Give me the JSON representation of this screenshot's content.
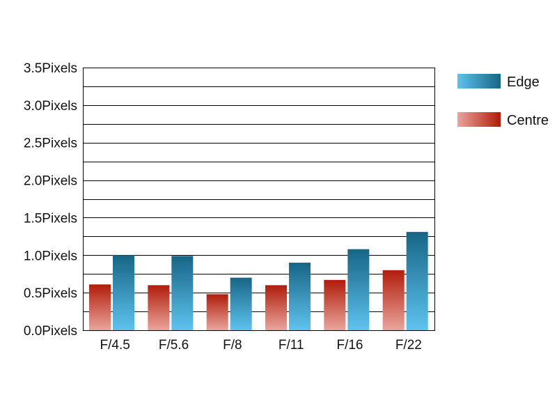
{
  "chart_data": {
    "type": "bar",
    "title": "",
    "xlabel": "",
    "ylabel": "",
    "categories": [
      "F/4.5",
      "F/5.6",
      "F/8",
      "F/11",
      "F/16",
      "F/22"
    ],
    "series": [
      {
        "name": "Centre",
        "values": [
          0.61,
          0.6,
          0.48,
          0.6,
          0.67,
          0.8
        ]
      },
      {
        "name": "Edge",
        "values": [
          1.0,
          0.99,
          0.7,
          0.9,
          1.08,
          1.31
        ]
      }
    ],
    "ylim": [
      0,
      3.5
    ],
    "y_ticks": [
      "0.0Pixels",
      "0.5Pixels",
      "1.0Pixels",
      "1.5Pixels",
      "2.0Pixels",
      "2.5Pixels",
      "3.0Pixels",
      "3.5Pixels"
    ],
    "gridlines": true,
    "legend_position": "top-right",
    "colors": {
      "centre_light": "#eaa59c",
      "centre_dark": "#b01c0a",
      "edge_light": "#5ec3ef",
      "edge_dark": "#176585",
      "grid": "#000000"
    }
  }
}
